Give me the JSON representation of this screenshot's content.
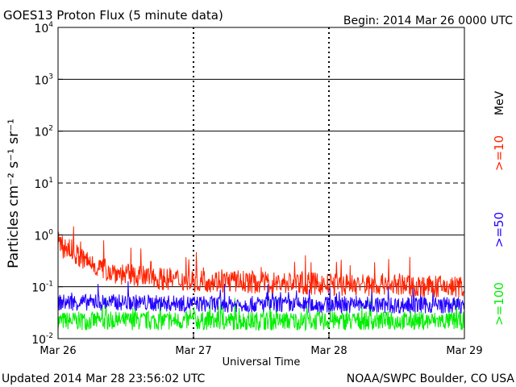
{
  "header": {
    "title": "GOES13 Proton Flux (5 minute data)",
    "begin": "Begin: 2014 Mar 26 0000 UTC"
  },
  "footer": {
    "updated": "Updated 2014 Mar 28 23:56:02 UTC",
    "credit": "NOAA/SWPC Boulder, CO USA"
  },
  "chart_data": {
    "type": "line",
    "title": "GOES13 Proton Flux (5 minute data)",
    "xlabel": "Universal Time",
    "ylabel": "Particles cm⁻² s⁻¹ sr⁻¹",
    "yscale": "log",
    "ylim": [
      0.01,
      10000
    ],
    "xlim": [
      "2014-03-26",
      "2014-03-29"
    ],
    "x_ticks": [
      "Mar 26",
      "Mar 27",
      "Mar 28",
      "Mar 29"
    ],
    "y_ticks": [
      {
        "base": "10",
        "exp": "-2"
      },
      {
        "base": "10",
        "exp": "-1"
      },
      {
        "base": "10",
        "exp": "0"
      },
      {
        "base": "10",
        "exp": "1"
      },
      {
        "base": "10",
        "exp": "2"
      },
      {
        "base": "10",
        "exp": "3"
      },
      {
        "base": "10",
        "exp": "4"
      }
    ],
    "reference_lines": [
      {
        "value": 0.1,
        "style": "solid"
      },
      {
        "value": 1,
        "style": "solid"
      },
      {
        "value": 10,
        "style": "dashed"
      },
      {
        "value": 100,
        "style": "solid"
      },
      {
        "value": 1000,
        "style": "solid"
      }
    ],
    "legend_placement": "right (rotated)",
    "legend_unit": "MeV",
    "series": [
      {
        "name": ">=10",
        "color": "#ff2200",
        "x": [
          "2014-03-26 00:00",
          "2014-03-26 02:00",
          "2014-03-26 04:00",
          "2014-03-26 08:00",
          "2014-03-26 12:00",
          "2014-03-26 16:00",
          "2014-03-26 20:00",
          "2014-03-27 00:00",
          "2014-03-27 06:00",
          "2014-03-27 12:00",
          "2014-03-27 18:00",
          "2014-03-28 00:00",
          "2014-03-28 06:00",
          "2014-03-28 12:00",
          "2014-03-28 18:00",
          "2014-03-28 23:55"
        ],
        "y": [
          0.6,
          0.55,
          0.35,
          0.22,
          0.17,
          0.15,
          0.14,
          0.13,
          0.13,
          0.12,
          0.12,
          0.11,
          0.11,
          0.11,
          0.1,
          0.1
        ]
      },
      {
        "name": ">=50",
        "color": "#2200ff",
        "x": [
          "2014-03-26 00:00",
          "2014-03-26 06:00",
          "2014-03-26 12:00",
          "2014-03-26 18:00",
          "2014-03-27 00:00",
          "2014-03-27 06:00",
          "2014-03-27 12:00",
          "2014-03-27 18:00",
          "2014-03-28 00:00",
          "2014-03-28 06:00",
          "2014-03-28 12:00",
          "2014-03-28 18:00",
          "2014-03-28 23:55"
        ],
        "y": [
          0.05,
          0.05,
          0.05,
          0.048,
          0.047,
          0.046,
          0.046,
          0.045,
          0.045,
          0.045,
          0.044,
          0.044,
          0.044
        ]
      },
      {
        "name": ">=100",
        "color": "#00ee00",
        "x": [
          "2014-03-26 00:00",
          "2014-03-26 06:00",
          "2014-03-26 12:00",
          "2014-03-26 18:00",
          "2014-03-27 00:00",
          "2014-03-27 06:00",
          "2014-03-27 12:00",
          "2014-03-27 18:00",
          "2014-03-28 00:00",
          "2014-03-28 06:00",
          "2014-03-28 12:00",
          "2014-03-28 18:00",
          "2014-03-28 23:55"
        ],
        "y": [
          0.022,
          0.022,
          0.022,
          0.022,
          0.022,
          0.022,
          0.022,
          0.022,
          0.022,
          0.022,
          0.022,
          0.022,
          0.022
        ]
      }
    ]
  }
}
